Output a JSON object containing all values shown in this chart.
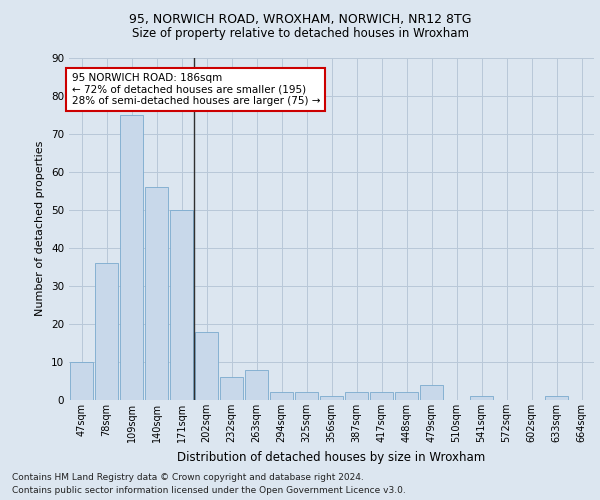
{
  "title_line1": "95, NORWICH ROAD, WROXHAM, NORWICH, NR12 8TG",
  "title_line2": "Size of property relative to detached houses in Wroxham",
  "xlabel": "Distribution of detached houses by size in Wroxham",
  "ylabel": "Number of detached properties",
  "footer_line1": "Contains HM Land Registry data © Crown copyright and database right 2024.",
  "footer_line2": "Contains public sector information licensed under the Open Government Licence v3.0.",
  "bar_labels": [
    "47sqm",
    "78sqm",
    "109sqm",
    "140sqm",
    "171sqm",
    "202sqm",
    "232sqm",
    "263sqm",
    "294sqm",
    "325sqm",
    "356sqm",
    "387sqm",
    "417sqm",
    "448sqm",
    "479sqm",
    "510sqm",
    "541sqm",
    "572sqm",
    "602sqm",
    "633sqm",
    "664sqm"
  ],
  "bar_values": [
    10,
    36,
    75,
    56,
    50,
    18,
    6,
    8,
    2,
    2,
    1,
    2,
    2,
    2,
    4,
    0,
    1,
    0,
    0,
    1,
    0
  ],
  "bar_color": "#c8d8ea",
  "bar_edge_color": "#7aaace",
  "annotation_line1": "95 NORWICH ROAD: 186sqm",
  "annotation_line2": "← 72% of detached houses are smaller (195)",
  "annotation_line3": "28% of semi-detached houses are larger (75) →",
  "annotation_box_color": "white",
  "annotation_box_edge_color": "#cc0000",
  "ylim": [
    0,
    90
  ],
  "yticks": [
    0,
    10,
    20,
    30,
    40,
    50,
    60,
    70,
    80,
    90
  ],
  "background_color": "#dce6f0",
  "grid_color": "#b8c8d8",
  "title1_fontsize": 9,
  "title2_fontsize": 8.5,
  "ylabel_fontsize": 8,
  "xlabel_fontsize": 8.5,
  "tick_fontsize": 7,
  "footer_fontsize": 6.5
}
